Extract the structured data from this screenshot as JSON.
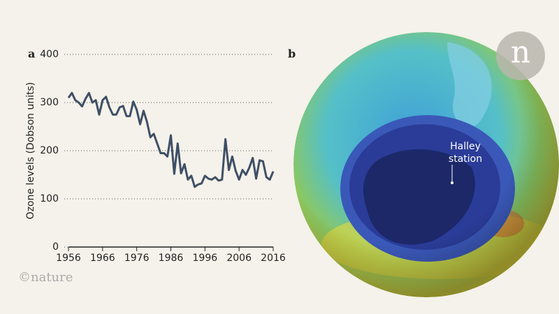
{
  "chart_data": {
    "type": "line",
    "ylabel": "Ozone levels (Dobson units)",
    "x": [
      1956,
      1957,
      1958,
      1959,
      1960,
      1961,
      1962,
      1963,
      1964,
      1965,
      1966,
      1967,
      1968,
      1969,
      1970,
      1971,
      1972,
      1973,
      1974,
      1975,
      1976,
      1977,
      1978,
      1979,
      1980,
      1981,
      1982,
      1983,
      1984,
      1985,
      1986,
      1987,
      1988,
      1989,
      1990,
      1991,
      1992,
      1993,
      1994,
      1995,
      1996,
      1997,
      1998,
      1999,
      2000,
      2001,
      2002,
      2003,
      2004,
      2005,
      2006,
      2007,
      2008,
      2009,
      2010,
      2011,
      2012,
      2013,
      2014,
      2015,
      2016
    ],
    "series": [
      {
        "name": "Ozone levels",
        "color": "#3f4f66",
        "values": [
          310,
          320,
          305,
          300,
          292,
          308,
          320,
          300,
          305,
          275,
          305,
          312,
          290,
          275,
          275,
          290,
          293,
          272,
          272,
          302,
          285,
          255,
          283,
          260,
          228,
          235,
          215,
          195,
          195,
          188,
          232,
          152,
          215,
          153,
          172,
          140,
          148,
          125,
          130,
          132,
          148,
          142,
          140,
          145,
          138,
          140,
          224,
          160,
          188,
          158,
          140,
          160,
          150,
          165,
          185,
          142,
          180,
          178,
          145,
          140,
          157
        ]
      }
    ],
    "xlim": [
      1956,
      2016
    ],
    "xticks": [
      1956,
      1966,
      1976,
      1986,
      1996,
      2006,
      2016
    ],
    "ylim": [
      0,
      400
    ],
    "yticks": [
      0,
      100,
      200,
      300,
      400
    ],
    "grid": true
  },
  "labels": {
    "panel_a": "a",
    "panel_b": "b",
    "annotation": [
      "Halley",
      "station"
    ],
    "credit": "©nature",
    "logo": "n"
  }
}
